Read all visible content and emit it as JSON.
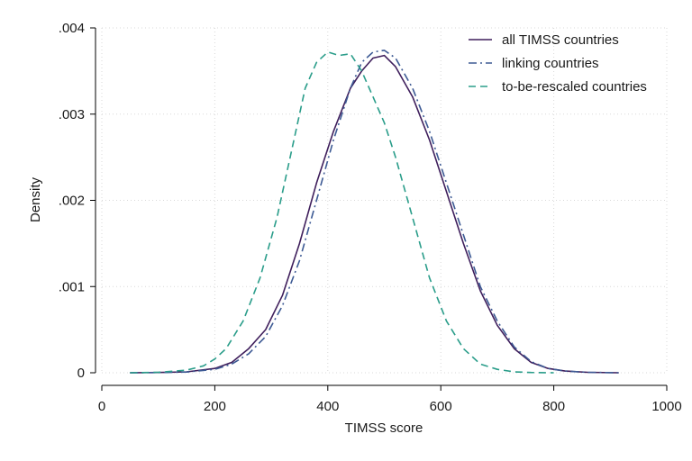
{
  "chart_data": {
    "type": "line",
    "title": "",
    "xlabel": "TIMSS score",
    "ylabel": "Density",
    "xlim": [
      0,
      1000
    ],
    "ylim": [
      0,
      0.004
    ],
    "xticks": [
      0,
      200,
      400,
      600,
      800,
      1000
    ],
    "xtick_labels": [
      "0",
      "200",
      "400",
      "600",
      "800",
      "1000"
    ],
    "yticks": [
      0,
      0.001,
      0.002,
      0.003,
      0.004
    ],
    "ytick_labels": [
      "0",
      ".001",
      ".002",
      ".003",
      ".004"
    ],
    "grid": true,
    "legend_position": "top-right",
    "series": [
      {
        "name": "all TIMSS countries",
        "color": "#3f1f5c",
        "dash": "solid",
        "x": [
          50,
          100,
          150,
          200,
          230,
          260,
          290,
          320,
          350,
          380,
          410,
          440,
          460,
          480,
          500,
          520,
          550,
          580,
          610,
          640,
          670,
          700,
          730,
          760,
          790,
          820,
          860,
          915
        ],
        "y": [
          0,
          3e-06,
          1e-05,
          5e-05,
          0.00012,
          0.00028,
          0.0005,
          0.0009,
          0.0015,
          0.0022,
          0.0028,
          0.0033,
          0.0035,
          0.00365,
          0.00368,
          0.00355,
          0.0032,
          0.0027,
          0.0021,
          0.0015,
          0.00095,
          0.00055,
          0.00028,
          0.00012,
          5e-05,
          2e-05,
          5e-06,
          0
        ]
      },
      {
        "name": "linking countries",
        "color": "#3d5a94",
        "dash": "dashdot",
        "x": [
          50,
          100,
          150,
          200,
          230,
          260,
          290,
          320,
          350,
          380,
          410,
          440,
          460,
          480,
          500,
          520,
          550,
          580,
          610,
          640,
          670,
          700,
          730,
          760,
          790,
          820,
          860,
          915
        ],
        "y": [
          0,
          2e-06,
          8e-06,
          4e-05,
          0.0001,
          0.00022,
          0.00042,
          0.00078,
          0.0013,
          0.002,
          0.0027,
          0.0033,
          0.0036,
          0.00372,
          0.00374,
          0.00365,
          0.0033,
          0.0028,
          0.0022,
          0.0016,
          0.001,
          0.0006,
          0.0003,
          0.00013,
          5e-05,
          2e-05,
          5e-06,
          0
        ]
      },
      {
        "name": "to-be-rescaled countries",
        "color": "#2a9d8a",
        "dash": "dashed",
        "x": [
          50,
          100,
          150,
          180,
          200,
          220,
          250,
          280,
          310,
          340,
          360,
          380,
          400,
          420,
          440,
          460,
          480,
          500,
          520,
          550,
          580,
          610,
          640,
          670,
          700,
          730,
          760,
          800
        ],
        "y": [
          0,
          5e-06,
          3e-05,
          8e-05,
          0.00016,
          0.00028,
          0.0006,
          0.0011,
          0.0018,
          0.0027,
          0.0033,
          0.0036,
          0.00372,
          0.00368,
          0.0037,
          0.0035,
          0.0032,
          0.0029,
          0.0025,
          0.0018,
          0.0011,
          0.0006,
          0.00028,
          0.0001,
          4e-05,
          1e-05,
          3e-06,
          0
        ]
      }
    ]
  }
}
